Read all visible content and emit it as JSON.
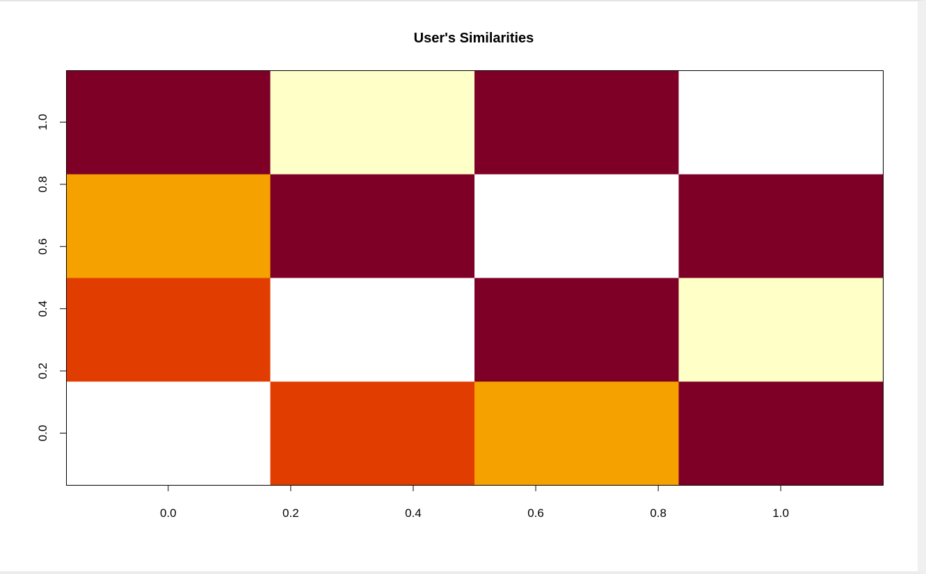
{
  "chart_data": {
    "type": "heatmap",
    "title": "User's Similarities",
    "xlabel": "",
    "ylabel": "",
    "xlim": [
      -0.1667,
      1.1667
    ],
    "ylim": [
      -0.1667,
      1.1667
    ],
    "x_ticks": [
      0.0,
      0.2,
      0.4,
      0.6,
      0.8,
      1.0
    ],
    "x_tick_labels": [
      "0.0",
      "0.2",
      "0.4",
      "0.6",
      "0.8",
      "1.0"
    ],
    "y_ticks": [
      0.0,
      0.2,
      0.4,
      0.6,
      0.8,
      1.0
    ],
    "y_tick_labels": [
      "0.0",
      "0.2",
      "0.4",
      "0.6",
      "0.8",
      "1.0"
    ],
    "x_centers": [
      0.0,
      0.3333,
      0.6667,
      1.0
    ],
    "y_centers": [
      0.0,
      0.3333,
      0.6667,
      1.0
    ],
    "color_scale": [
      "#7f0027",
      "#e23d01",
      "#f5a200",
      "#ffffc8",
      "#ffffff"
    ],
    "grid": false,
    "legend": "none",
    "cells": [
      [
        4,
        1,
        2,
        0
      ],
      [
        1,
        4,
        0,
        3
      ],
      [
        2,
        0,
        4,
        0
      ],
      [
        0,
        3,
        0,
        4
      ]
    ]
  }
}
